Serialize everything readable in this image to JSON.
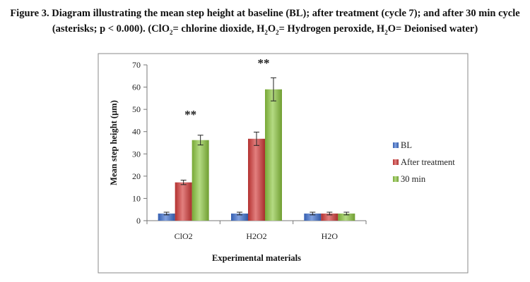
{
  "caption": {
    "line1": "Figure 3. Diagram illustrating the mean step height at baseline (BL);      after treatment (cycle 7); and after 30 min cycle",
    "line2_a": "(asterisks; p < 0.000). (ClO",
    "line2_sub1": "2",
    "line2_b": "= chlorine dioxide, H",
    "line2_sub2": "2",
    "line2_c": "O",
    "line2_sub3": "2",
    "line2_d": "= Hydrogen peroxide, H",
    "line2_sub4": "2",
    "line2_e": "O= Deionised water)"
  },
  "chart_data": {
    "type": "bar",
    "categories": [
      "ClO2",
      "H2O2",
      "H2O"
    ],
    "series": [
      {
        "name": "BL",
        "values": [
          3.2,
          3.2,
          3.2
        ],
        "errors": [
          0.6,
          0.6,
          0.6
        ],
        "color": "#3d6fcf"
      },
      {
        "name": "After treatment",
        "values": [
          17.2,
          36.8,
          3.2
        ],
        "errors": [
          1.0,
          3.0,
          0.6
        ],
        "color": "#d23a38"
      },
      {
        "name": "30 min",
        "values": [
          36.2,
          59.0,
          3.2
        ],
        "errors": [
          2.2,
          5.2,
          0.6
        ],
        "color": "#8cc63f"
      }
    ],
    "ylim": [
      0,
      70
    ],
    "yticks": [
      0,
      10,
      20,
      30,
      40,
      50,
      60,
      70
    ],
    "xlabel": "Experimental materials",
    "ylabel": "Mean step height (µm)",
    "annotations": [
      {
        "category": "ClO2",
        "text": "**",
        "y": 46
      },
      {
        "category": "H2O2",
        "text": "**",
        "y": 69
      }
    ],
    "legend_position": "right"
  }
}
